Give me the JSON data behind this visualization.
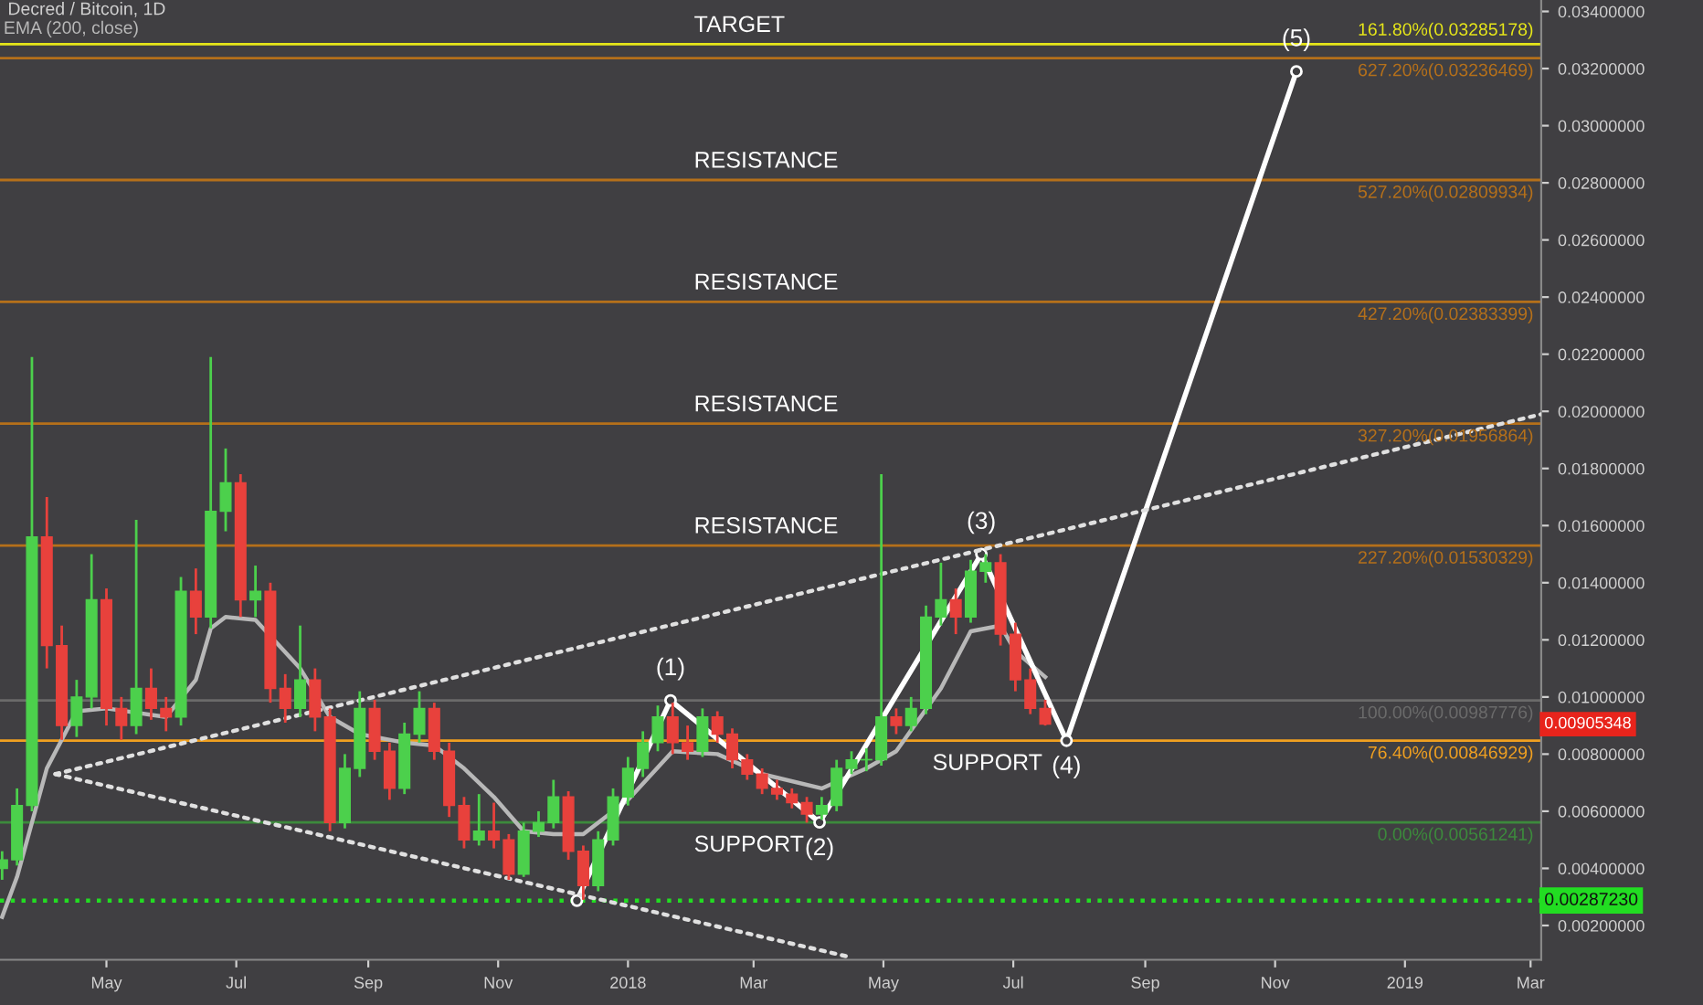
{
  "chart_data": {
    "type": "candlestick",
    "title": "Decred / Bitcoin, 1D",
    "x": [
      "2017-03-13",
      "2017-03-20",
      "2017-03-27",
      "2017-04-03",
      "2017-04-10",
      "2017-04-17",
      "2017-04-24",
      "2017-05-01",
      "2017-05-08",
      "2017-05-15",
      "2017-05-22",
      "2017-05-29",
      "2017-06-05",
      "2017-06-12",
      "2017-06-19",
      "2017-06-26",
      "2017-07-03",
      "2017-07-10",
      "2017-07-17",
      "2017-07-24",
      "2017-07-31",
      "2017-08-07",
      "2017-08-14",
      "2017-08-21",
      "2017-08-28",
      "2017-09-04",
      "2017-09-11",
      "2017-09-18",
      "2017-09-25",
      "2017-10-02",
      "2017-10-09",
      "2017-10-16",
      "2017-10-23",
      "2017-10-30",
      "2017-11-06",
      "2017-11-13",
      "2017-11-20",
      "2017-11-27",
      "2017-12-04",
      "2017-12-11",
      "2017-12-18",
      "2017-12-25",
      "2018-01-01",
      "2018-01-08",
      "2018-01-15",
      "2018-01-22",
      "2018-01-29",
      "2018-02-05",
      "2018-02-12",
      "2018-02-19",
      "2018-02-26",
      "2018-03-05",
      "2018-03-12",
      "2018-03-19",
      "2018-03-26",
      "2018-04-02",
      "2018-04-09",
      "2018-04-16",
      "2018-04-23",
      "2018-04-30",
      "2018-05-07",
      "2018-05-14",
      "2018-05-21",
      "2018-05-28",
      "2018-06-04",
      "2018-06-11",
      "2018-06-18",
      "2018-06-25",
      "2018-07-02",
      "2018-07-09",
      "2018-07-16"
    ],
    "ohlc": [
      [
        0.004,
        0.0046,
        0.0036,
        0.0043
      ],
      [
        0.0043,
        0.0068,
        0.0041,
        0.0062
      ],
      [
        0.0062,
        0.0219,
        0.006,
        0.0156
      ],
      [
        0.0156,
        0.017,
        0.011,
        0.0118
      ],
      [
        0.0118,
        0.0125,
        0.0085,
        0.009
      ],
      [
        0.009,
        0.0106,
        0.0086,
        0.01
      ],
      [
        0.01,
        0.015,
        0.0096,
        0.0134
      ],
      [
        0.0134,
        0.0138,
        0.009,
        0.0096
      ],
      [
        0.0096,
        0.01,
        0.0085,
        0.009
      ],
      [
        0.009,
        0.0162,
        0.0087,
        0.0103
      ],
      [
        0.0103,
        0.011,
        0.0092,
        0.0096
      ],
      [
        0.0096,
        0.01,
        0.0088,
        0.0093
      ],
      [
        0.0093,
        0.0142,
        0.009,
        0.0137
      ],
      [
        0.0137,
        0.0145,
        0.0122,
        0.0128
      ],
      [
        0.0128,
        0.0219,
        0.0124,
        0.0165
      ],
      [
        0.0165,
        0.0187,
        0.0158,
        0.0175
      ],
      [
        0.0175,
        0.0178,
        0.0128,
        0.0134
      ],
      [
        0.0134,
        0.0146,
        0.0128,
        0.0137
      ],
      [
        0.0137,
        0.014,
        0.0098,
        0.0103
      ],
      [
        0.0103,
        0.0108,
        0.0091,
        0.0096
      ],
      [
        0.0096,
        0.0125,
        0.0093,
        0.0106
      ],
      [
        0.0106,
        0.011,
        0.0088,
        0.0093
      ],
      [
        0.0093,
        0.0096,
        0.0053,
        0.0056
      ],
      [
        0.0056,
        0.008,
        0.0054,
        0.0075
      ],
      [
        0.0075,
        0.0102,
        0.0072,
        0.0096
      ],
      [
        0.0096,
        0.0099,
        0.0078,
        0.0081
      ],
      [
        0.0081,
        0.0084,
        0.0064,
        0.0068
      ],
      [
        0.0068,
        0.0091,
        0.0066,
        0.0087
      ],
      [
        0.0087,
        0.0102,
        0.0084,
        0.0096
      ],
      [
        0.0096,
        0.0098,
        0.0078,
        0.0081
      ],
      [
        0.0081,
        0.0084,
        0.0058,
        0.0062
      ],
      [
        0.0062,
        0.0065,
        0.0047,
        0.005
      ],
      [
        0.005,
        0.0066,
        0.0048,
        0.0053
      ],
      [
        0.0053,
        0.0063,
        0.0047,
        0.005
      ],
      [
        0.005,
        0.0052,
        0.0036,
        0.0038
      ],
      [
        0.0038,
        0.0056,
        0.0037,
        0.0053
      ],
      [
        0.0053,
        0.006,
        0.0051,
        0.0056
      ],
      [
        0.0056,
        0.0071,
        0.0054,
        0.0065
      ],
      [
        0.0065,
        0.0067,
        0.0043,
        0.0046
      ],
      [
        0.0046,
        0.0048,
        0.0029,
        0.0034
      ],
      [
        0.0034,
        0.0053,
        0.0032,
        0.005
      ],
      [
        0.005,
        0.0068,
        0.0048,
        0.0065
      ],
      [
        0.0065,
        0.0079,
        0.0062,
        0.0075
      ],
      [
        0.0075,
        0.0088,
        0.0072,
        0.0084
      ],
      [
        0.0084,
        0.0097,
        0.0081,
        0.0093
      ],
      [
        0.0093,
        0.0098,
        0.008,
        0.0084
      ],
      [
        0.0084,
        0.009,
        0.0078,
        0.0081
      ],
      [
        0.0081,
        0.0096,
        0.0079,
        0.0093
      ],
      [
        0.0093,
        0.0095,
        0.0084,
        0.0087
      ],
      [
        0.0087,
        0.0089,
        0.0075,
        0.0078
      ],
      [
        0.0078,
        0.008,
        0.0071,
        0.0073
      ],
      [
        0.0073,
        0.0075,
        0.0066,
        0.0068
      ],
      [
        0.0068,
        0.0071,
        0.0064,
        0.0066
      ],
      [
        0.0066,
        0.0068,
        0.0061,
        0.0063
      ],
      [
        0.0063,
        0.0065,
        0.0056,
        0.0059
      ],
      [
        0.0059,
        0.0065,
        0.0057,
        0.0062
      ],
      [
        0.0062,
        0.0078,
        0.006,
        0.0075
      ],
      [
        0.0075,
        0.0081,
        0.0073,
        0.0078
      ],
      [
        0.0078,
        0.0082,
        0.0074,
        0.0078
      ],
      [
        0.0078,
        0.0178,
        0.0076,
        0.0093
      ],
      [
        0.0093,
        0.0096,
        0.0087,
        0.009
      ],
      [
        0.009,
        0.01,
        0.0088,
        0.0096
      ],
      [
        0.0096,
        0.0132,
        0.0094,
        0.0128
      ],
      [
        0.0128,
        0.0147,
        0.0125,
        0.0134
      ],
      [
        0.0134,
        0.0138,
        0.0122,
        0.0128
      ],
      [
        0.0128,
        0.0148,
        0.0126,
        0.0144
      ],
      [
        0.0144,
        0.015,
        0.014,
        0.0147
      ],
      [
        0.0147,
        0.015,
        0.0118,
        0.0122
      ],
      [
        0.0122,
        0.0126,
        0.0102,
        0.0106
      ],
      [
        0.0106,
        0.011,
        0.0094,
        0.0096
      ],
      [
        0.0096,
        0.0099,
        0.009,
        0.00905
      ]
    ],
    "series": [
      {
        "type": "line",
        "name": "EMA (200, close)",
        "color": "#b8b8b8",
        "x": [
          "2017-03-13",
          "2017-03-20",
          "2017-04-03",
          "2017-04-17",
          "2017-05-01",
          "2017-05-29",
          "2017-06-12",
          "2017-06-19",
          "2017-06-26",
          "2017-07-10",
          "2017-07-31",
          "2017-08-14",
          "2017-08-28",
          "2017-09-18",
          "2017-10-02",
          "2017-10-16",
          "2017-10-30",
          "2017-11-13",
          "2017-11-27",
          "2017-12-11",
          "2018-01-01",
          "2018-01-22",
          "2018-02-12",
          "2018-03-05",
          "2018-04-02",
          "2018-04-23",
          "2018-05-07",
          "2018-05-28",
          "2018-06-11",
          "2018-06-25",
          "2018-07-02",
          "2018-07-16"
        ],
        "values": [
          0.0023,
          0.0037,
          0.0075,
          0.0095,
          0.0096,
          0.0093,
          0.0106,
          0.0124,
          0.0128,
          0.0127,
          0.011,
          0.0093,
          0.0087,
          0.0084,
          0.0083,
          0.0075,
          0.0065,
          0.0053,
          0.0052,
          0.0052,
          0.0064,
          0.0081,
          0.008,
          0.0073,
          0.0068,
          0.0075,
          0.0081,
          0.0103,
          0.0123,
          0.0125,
          0.0116,
          0.0107
        ]
      },
      {
        "type": "line",
        "color": "#ffffff",
        "x": [
          "2017-12-08",
          "2018-01-21",
          "2018-04-01",
          "2018-06-16",
          "2018-07-26",
          "2018-11-11"
        ],
        "values": [
          0.00287,
          0.00988,
          0.00561,
          0.015,
          0.00847,
          0.0319
        ],
        "marker": "circle"
      },
      {
        "type": "line",
        "color": "#e0e0e0",
        "line_style": "dotted",
        "x": [
          "2017-04-07",
          "2019-03-06"
        ],
        "values": [
          0.0073,
          0.0199
        ]
      },
      {
        "type": "line",
        "color": "#e0e0e0",
        "line_style": "dotted",
        "x": [
          "2017-04-07",
          "2018-04-15"
        ],
        "values": [
          0.0073,
          0.0009
        ]
      }
    ],
    "ref_lines": [
      {
        "axis": "y",
        "value": 0.03285178,
        "label": "161.80%(0.03285178)",
        "color": "#e6e619"
      },
      {
        "axis": "y",
        "value": 0.03236469,
        "label": "627.20%(0.03236469)",
        "color": "#b5701a"
      },
      {
        "axis": "y",
        "value": 0.02809934,
        "label": "527.20%(0.02809934)",
        "color": "#b5701a"
      },
      {
        "axis": "y",
        "value": 0.02383399,
        "label": "427.20%(0.02383399)",
        "color": "#b5701a"
      },
      {
        "axis": "y",
        "value": 0.01956864,
        "label": "327.20%(0.01956864)",
        "color": "#b5701a"
      },
      {
        "axis": "y",
        "value": 0.01530329,
        "label": "227.20%(0.01530329)",
        "color": "#b5701a"
      },
      {
        "axis": "y",
        "value": 0.00987776,
        "label": "100.00%(0.00987776)",
        "color": "#6a6a6a"
      },
      {
        "axis": "y",
        "value": 0.00846929,
        "label": "76.40%(0.00846929)",
        "color": "#f0a020"
      },
      {
        "axis": "y",
        "value": 0.00561241,
        "label": "0.00%(0.00561241)",
        "color": "#3c8a3c"
      },
      {
        "axis": "y",
        "value": 0.0028723,
        "label": "0.00287230",
        "color": "#22dd22",
        "line_style": "dotted"
      }
    ],
    "annotations": [
      {
        "text": "TARGET",
        "x": "2018-02-01",
        "y": 0.03285178
      },
      {
        "text": "RESISTANCE",
        "x": "2018-02-01",
        "y": 0.02809934
      },
      {
        "text": "RESISTANCE",
        "x": "2018-02-01",
        "y": 0.02383399
      },
      {
        "text": "RESISTANCE",
        "x": "2018-02-01",
        "y": 0.01956864
      },
      {
        "text": "RESISTANCE",
        "x": "2018-02-01",
        "y": 0.01530329
      },
      {
        "text": "SUPPORT",
        "x": "2018-02-01",
        "y": 0.00561241
      },
      {
        "text": "SUPPORT",
        "x": "2018-05-24",
        "y": 0.00846929
      },
      {
        "text": "(1)",
        "x": "2018-01-21",
        "y": 0.00988
      },
      {
        "text": "(2)",
        "x": "2018-04-01",
        "y": 0.00561
      },
      {
        "text": "(3)",
        "x": "2018-06-16",
        "y": 0.015
      },
      {
        "text": "(4)",
        "x": "2018-07-26",
        "y": 0.00847
      },
      {
        "text": "(5)",
        "x": "2018-11-11",
        "y": 0.0319
      },
      "0.00905348"
    ],
    "xlim": [
      "2017-03-12",
      "2019-03-06"
    ],
    "xticks": [
      {
        "value": "2017-05-01",
        "label": "May"
      },
      {
        "value": "2017-07-01",
        "label": "Jul"
      },
      {
        "value": "2017-09-01",
        "label": "Sep"
      },
      {
        "value": "2017-11-01",
        "label": "Nov"
      },
      {
        "value": "2018-01-01",
        "label": "2018"
      },
      {
        "value": "2018-03-01",
        "label": "Mar"
      },
      {
        "value": "2018-05-01",
        "label": "May"
      },
      {
        "value": "2018-07-01",
        "label": "Jul"
      },
      {
        "value": "2018-09-01",
        "label": "Sep"
      },
      {
        "value": "2018-11-01",
        "label": "Nov"
      },
      {
        "value": "2019-01-01",
        "label": "2019"
      },
      {
        "value": "2019-03-01",
        "label": "Mar"
      }
    ],
    "ylim": [
      0.0008,
      0.0344
    ],
    "yticks": [
      {
        "value": 0.002,
        "label": "0.00200000"
      },
      {
        "value": 0.004,
        "label": "0.00400000"
      },
      {
        "value": 0.006,
        "label": "0.00600000"
      },
      {
        "value": 0.008,
        "label": "0.00800000"
      },
      {
        "value": 0.01,
        "label": "0.01000000"
      },
      {
        "value": 0.012,
        "label": "0.01200000"
      },
      {
        "value": 0.014,
        "label": "0.01400000"
      },
      {
        "value": 0.016,
        "label": "0.01600000"
      },
      {
        "value": 0.018,
        "label": "0.01800000"
      },
      {
        "value": 0.02,
        "label": "0.02000000"
      },
      {
        "value": 0.022,
        "label": "0.02200000"
      },
      {
        "value": 0.024,
        "label": "0.02400000"
      },
      {
        "value": 0.026,
        "label": "0.02600000"
      },
      {
        "value": 0.028,
        "label": "0.02800000"
      },
      {
        "value": 0.03,
        "label": "0.03000000"
      },
      {
        "value": 0.032,
        "label": "0.03200000"
      },
      {
        "value": 0.034,
        "label": "0.03400000"
      }
    ],
    "grid": false,
    "legend": "top left"
  }
}
